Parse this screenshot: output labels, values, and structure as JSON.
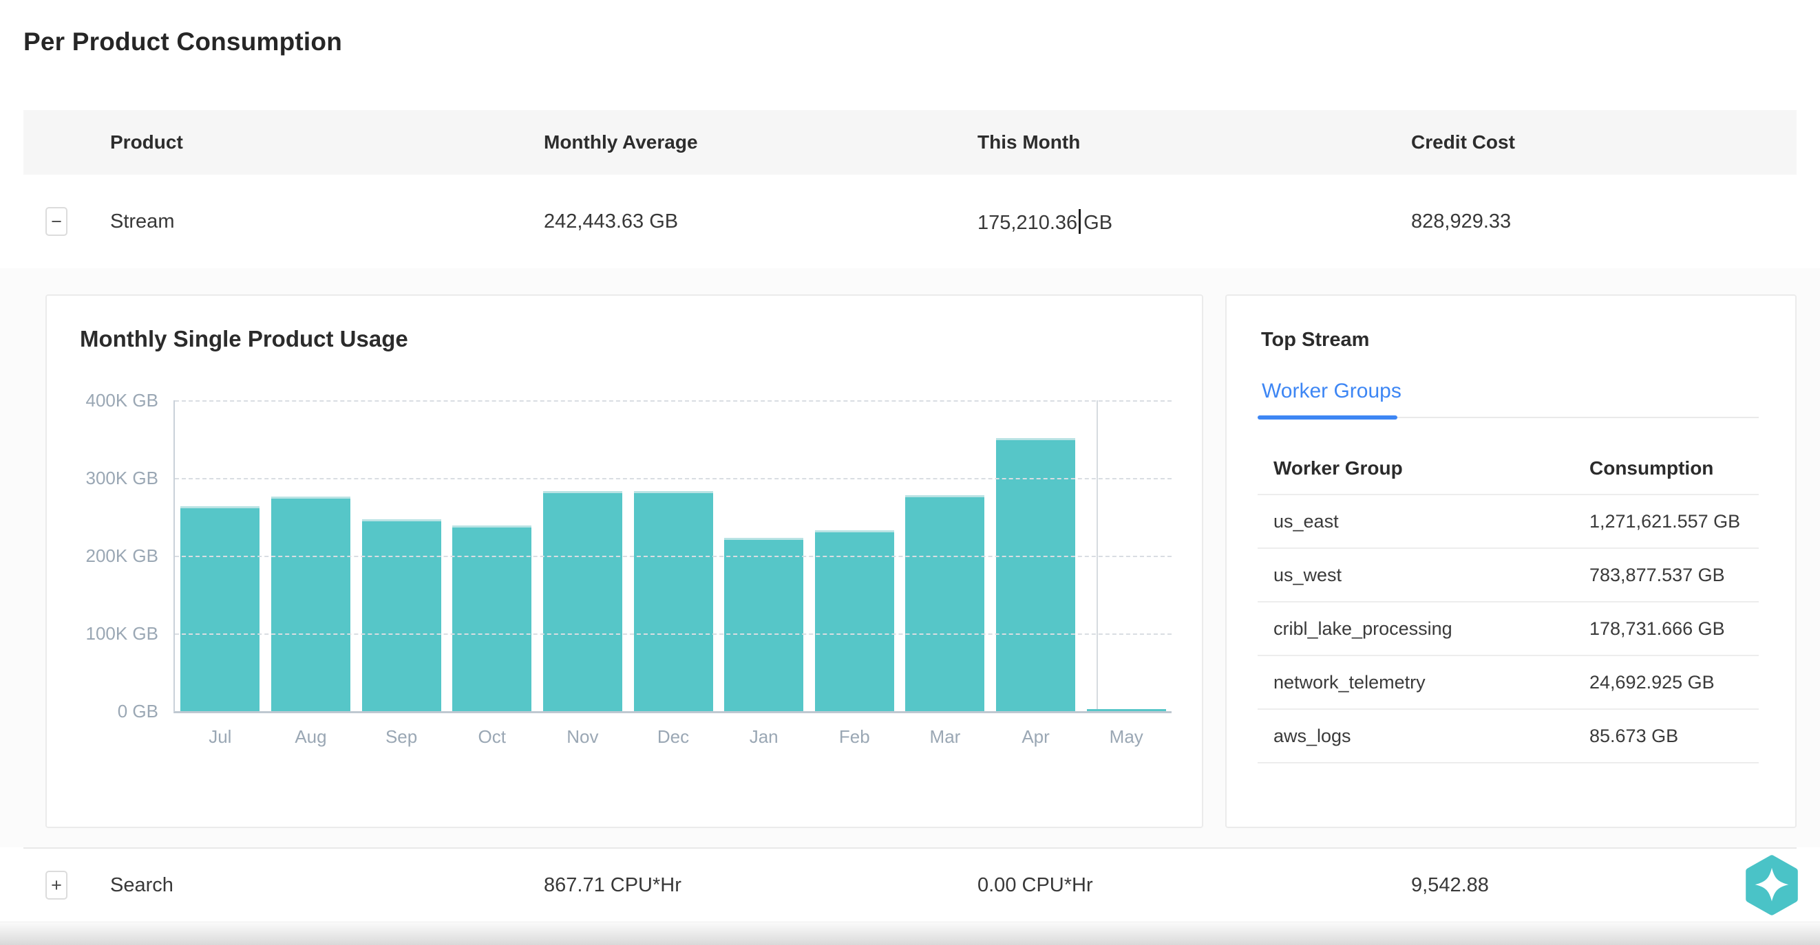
{
  "page_title": "Per Product Consumption",
  "consumption_table": {
    "columns": [
      "Product",
      "Monthly Average",
      "This Month",
      "Credit Cost"
    ],
    "stream_row": {
      "expander": "−",
      "product": "Stream",
      "monthly_average": "242,443.63 GB",
      "this_month_value": "175,210.36",
      "this_month_unit": "GB",
      "credit_cost": "828,929.33"
    },
    "search_row": {
      "expander": "+",
      "product": "Search",
      "monthly_average": "867.71 CPU*Hr",
      "this_month": "0.00 CPU*Hr",
      "credit_cost": "9,542.88"
    }
  },
  "chart_data": {
    "type": "bar",
    "title": "Monthly Single Product Usage",
    "categories": [
      "Jul",
      "Aug",
      "Sep",
      "Oct",
      "Nov",
      "Dec",
      "Jan",
      "Feb",
      "Mar",
      "Apr",
      "May"
    ],
    "values": [
      264000,
      276000,
      247000,
      239000,
      283000,
      283000,
      223000,
      233000,
      278000,
      351000,
      1500
    ],
    "unit": "GB",
    "xlabel": "",
    "ylabel": "",
    "ylim": [
      0,
      400000
    ],
    "yticks": [
      {
        "value": 400000,
        "label": "400K GB"
      },
      {
        "value": 300000,
        "label": "300K GB"
      },
      {
        "value": 200000,
        "label": "200K GB"
      },
      {
        "value": 100000,
        "label": "100K GB"
      },
      {
        "value": 0,
        "label": "0 GB"
      }
    ],
    "grid": "horizontal-dashed",
    "legend": "none",
    "bar_color": "#56c6c8"
  },
  "top_stream": {
    "title": "Top Stream",
    "active_tab": "Worker Groups",
    "table": {
      "columns": [
        "Worker Group",
        "Consumption"
      ],
      "rows": [
        {
          "worker_group": "us_east",
          "consumption": "1,271,621.557 GB"
        },
        {
          "worker_group": "us_west",
          "consumption": "783,877.537 GB"
        },
        {
          "worker_group": "cribl_lake_processing",
          "consumption": "178,731.666 GB"
        },
        {
          "worker_group": "network_telemetry",
          "consumption": "24,692.925 GB"
        },
        {
          "worker_group": "aws_logs",
          "consumption": "85.673 GB"
        }
      ]
    }
  },
  "assistant_button": {
    "icon": "sparkle-hexagon",
    "color": "#4ac3c7"
  },
  "colors": {
    "bar": "#56c6c8",
    "tab_active": "#3d86f4",
    "axis_text": "#9aa7b4",
    "header_bg": "#f6f6f6"
  }
}
